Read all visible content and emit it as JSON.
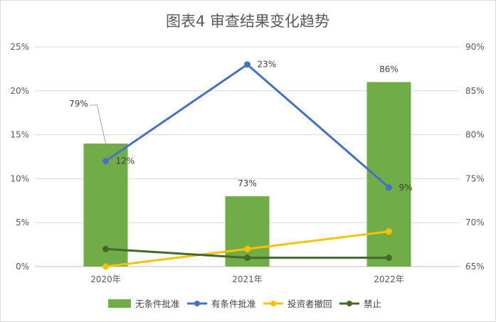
{
  "chart_data": {
    "type": "bar",
    "title": "图表4 审查结果变化趋势",
    "categories": [
      "2020年",
      "2021年",
      "2022年"
    ],
    "y_left": {
      "min": 0,
      "max": 25,
      "step": 5,
      "tick_labels": [
        "0%",
        "5%",
        "10%",
        "15%",
        "20%",
        "25%"
      ]
    },
    "y_right": {
      "min": 65,
      "max": 90,
      "step": 5,
      "tick_labels": [
        "65%",
        "70%",
        "75%",
        "80%",
        "85%",
        "90%"
      ]
    },
    "grid": true,
    "legend_position": "bottom",
    "series": [
      {
        "name": "无条件批准",
        "type": "bar",
        "axis": "right",
        "color": "#70ad47",
        "values": [
          79,
          73,
          86
        ],
        "labels": [
          "79%",
          "73%",
          "86%"
        ]
      },
      {
        "name": "有条件批准",
        "type": "line",
        "axis": "left",
        "color": "#4472c4",
        "values": [
          12,
          23,
          9
        ],
        "labels": [
          "12%",
          "23%",
          "9%"
        ]
      },
      {
        "name": "投资者撤回",
        "type": "line",
        "axis": "left",
        "color": "#ffc000",
        "values": [
          0,
          2,
          4
        ],
        "labels": []
      },
      {
        "name": "禁止",
        "type": "line",
        "axis": "left",
        "color": "#43682b",
        "values": [
          2,
          1,
          1
        ],
        "labels": []
      }
    ]
  }
}
